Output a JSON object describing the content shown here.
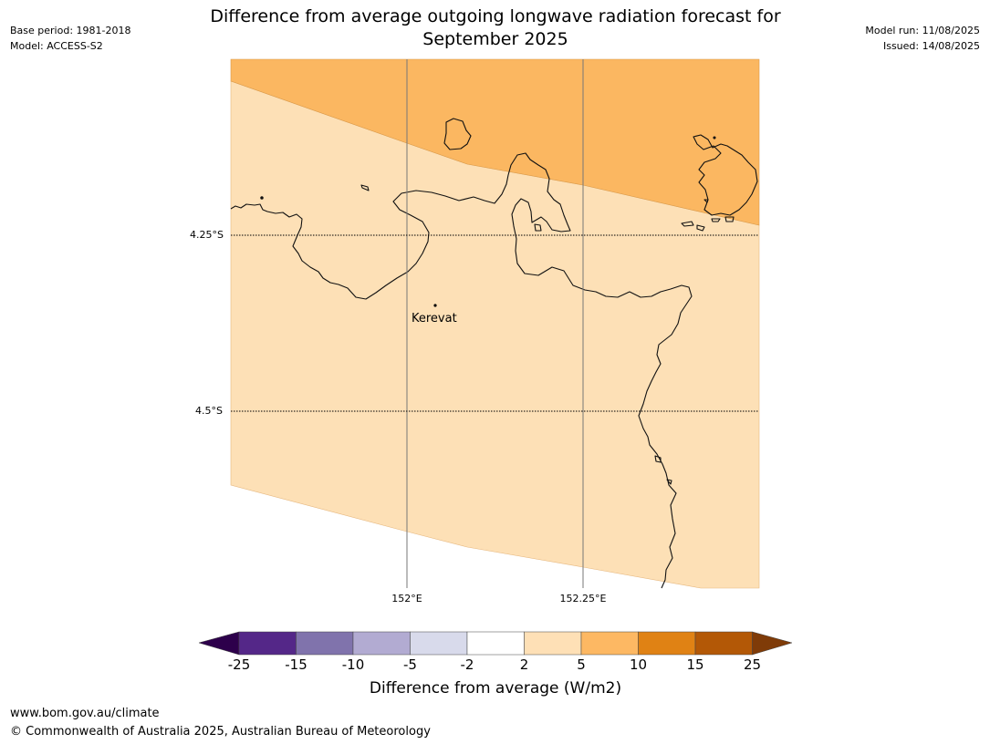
{
  "header": {
    "title_line1": "Difference from average outgoing longwave radiation forecast for",
    "title_line2": "September 2025",
    "base_period": "Base period: 1981-2018",
    "model": "Model: ACCESS-S2",
    "model_run": "Model run: 11/08/2025",
    "issued": "Issued: 14/08/2025"
  },
  "map": {
    "latitude_labels": [
      "4.25°S",
      "4.5°S"
    ],
    "longitude_labels": [
      "152°E",
      "152.25°E"
    ],
    "places": [
      {
        "name": "Kerevat"
      }
    ],
    "fill_colors": {
      "band_2_5": "#fde0b6",
      "band_5_10": "#fbb761"
    },
    "coastline_color": "#000000"
  },
  "colorbar": {
    "tick_labels": [
      "-25",
      "-15",
      "-10",
      "-5",
      "-2",
      "2",
      "5",
      "10",
      "15",
      "25"
    ],
    "colors": [
      "#2d004b",
      "#542788",
      "#8073ac",
      "#b2abd2",
      "#d8daeb",
      "#ffffff",
      "#fee0b6",
      "#fdb863",
      "#e08214",
      "#b35806",
      "#7f3b08"
    ],
    "label": "Difference from average (W/m2)"
  },
  "footer": {
    "url": "www.bom.gov.au/climate",
    "copyright": "© Commonwealth of Australia 2025, Australian Bureau of Meteorology"
  }
}
